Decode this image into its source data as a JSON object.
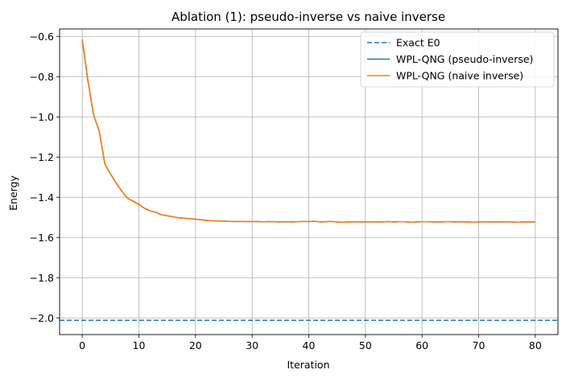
{
  "chart_data": {
    "type": "line",
    "title": "Ablation (1): pseudo-inverse vs naive inverse",
    "xlabel": "Iteration",
    "ylabel": "Energy",
    "xlim": [
      -4,
      84
    ],
    "ylim": [
      -2.083,
      -0.563
    ],
    "xticks": [
      0,
      10,
      20,
      30,
      40,
      50,
      60,
      70,
      80
    ],
    "yticks": [
      -2.0,
      -1.8,
      -1.6,
      -1.4,
      -1.2,
      -1.0,
      -0.8,
      -0.6
    ],
    "ytick_labels": [
      "−2.0",
      "−1.8",
      "−1.6",
      "−1.4",
      "−1.2",
      "−1.0",
      "−0.8",
      "−0.6"
    ],
    "xtick_labels": [
      "0",
      "10",
      "20",
      "30",
      "40",
      "50",
      "60",
      "70",
      "80"
    ],
    "grid": true,
    "legend_position": "top-right",
    "hlines": [
      {
        "name": "Exact E0",
        "y": -2.012,
        "color": "#1f77b4",
        "style": "dashed"
      }
    ],
    "x": [
      0,
      1,
      2,
      3,
      4,
      5,
      6,
      7,
      8,
      9,
      10,
      11,
      12,
      13,
      14,
      15,
      16,
      17,
      18,
      19,
      20,
      21,
      22,
      23,
      24,
      25,
      26,
      27,
      28,
      29,
      30,
      31,
      32,
      33,
      34,
      35,
      36,
      37,
      38,
      39,
      40,
      41,
      42,
      43,
      44,
      45,
      46,
      47,
      48,
      49,
      50,
      51,
      52,
      53,
      54,
      55,
      56,
      57,
      58,
      59,
      60,
      61,
      62,
      63,
      64,
      65,
      66,
      67,
      68,
      69,
      70,
      71,
      72,
      73,
      74,
      75,
      76,
      77,
      78,
      79,
      80
    ],
    "series": [
      {
        "name": "WPL-QNG (pseudo-inverse)",
        "color": "#1f77b4",
        "values": [
          -0.615,
          -0.82,
          -0.99,
          -1.07,
          -1.235,
          -1.285,
          -1.33,
          -1.37,
          -1.405,
          -1.42,
          -1.435,
          -1.455,
          -1.468,
          -1.475,
          -1.487,
          -1.492,
          -1.497,
          -1.502,
          -1.504,
          -1.507,
          -1.509,
          -1.512,
          -1.515,
          -1.517,
          -1.518,
          -1.519,
          -1.52,
          -1.521,
          -1.52,
          -1.521,
          -1.521,
          -1.521,
          -1.522,
          -1.521,
          -1.522,
          -1.523,
          -1.522,
          -1.523,
          -1.522,
          -1.52,
          -1.521,
          -1.519,
          -1.523,
          -1.522,
          -1.52,
          -1.523,
          -1.524,
          -1.523,
          -1.522,
          -1.523,
          -1.523,
          -1.522,
          -1.523,
          -1.523,
          -1.521,
          -1.523,
          -1.522,
          -1.522,
          -1.524,
          -1.523,
          -1.522,
          -1.522,
          -1.523,
          -1.523,
          -1.522,
          -1.522,
          -1.523,
          -1.522,
          -1.523,
          -1.524,
          -1.523,
          -1.522,
          -1.523,
          -1.523,
          -1.523,
          -1.522,
          -1.523,
          -1.524,
          -1.523,
          -1.523,
          -1.523
        ]
      },
      {
        "name": "WPL-QNG (naive inverse)",
        "color": "#ff7f0e",
        "values": [
          -0.615,
          -0.82,
          -0.99,
          -1.07,
          -1.235,
          -1.285,
          -1.33,
          -1.37,
          -1.405,
          -1.42,
          -1.435,
          -1.455,
          -1.468,
          -1.475,
          -1.487,
          -1.492,
          -1.497,
          -1.502,
          -1.504,
          -1.507,
          -1.509,
          -1.512,
          -1.515,
          -1.517,
          -1.518,
          -1.519,
          -1.52,
          -1.521,
          -1.52,
          -1.521,
          -1.521,
          -1.521,
          -1.522,
          -1.521,
          -1.522,
          -1.523,
          -1.522,
          -1.523,
          -1.522,
          -1.52,
          -1.521,
          -1.519,
          -1.523,
          -1.522,
          -1.52,
          -1.523,
          -1.524,
          -1.523,
          -1.522,
          -1.523,
          -1.523,
          -1.522,
          -1.523,
          -1.523,
          -1.521,
          -1.523,
          -1.522,
          -1.522,
          -1.524,
          -1.523,
          -1.522,
          -1.522,
          -1.523,
          -1.523,
          -1.522,
          -1.522,
          -1.523,
          -1.522,
          -1.523,
          -1.524,
          -1.523,
          -1.522,
          -1.523,
          -1.523,
          -1.523,
          -1.522,
          -1.523,
          -1.524,
          -1.523,
          -1.523,
          -1.523
        ]
      }
    ],
    "legend": [
      {
        "label": "Exact E0",
        "color": "#1f77b4",
        "style": "dashed"
      },
      {
        "label": "WPL-QNG (pseudo-inverse)",
        "color": "#1f77b4",
        "style": "solid"
      },
      {
        "label": "WPL-QNG (naive inverse)",
        "color": "#ff7f0e",
        "style": "solid"
      }
    ]
  }
}
